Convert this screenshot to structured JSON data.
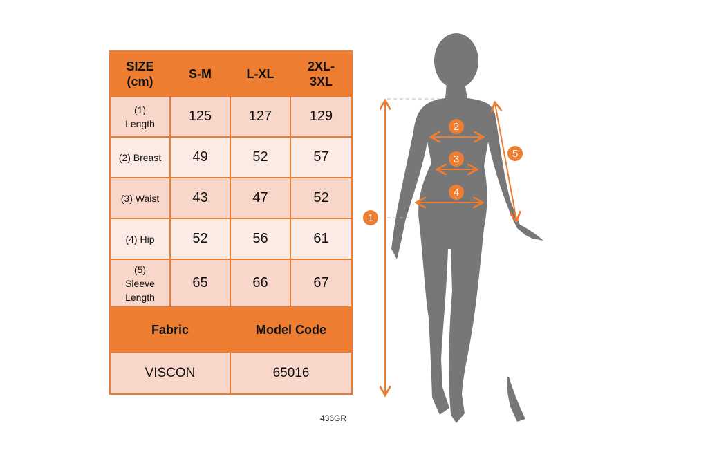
{
  "table": {
    "header": [
      "SIZE\n(cm)",
      "S-M",
      "L-XL",
      "2XL-\n3XL"
    ],
    "rows": [
      {
        "label": "(1)\nLength",
        "values": [
          "125",
          "127",
          "129"
        ]
      },
      {
        "label": "(2) Breast",
        "values": [
          "49",
          "52",
          "57"
        ]
      },
      {
        "label": "(3) Waist",
        "values": [
          "43",
          "47",
          "52"
        ]
      },
      {
        "label": "(4) Hip",
        "values": [
          "52",
          "56",
          "61"
        ]
      },
      {
        "label": "(5)\nSleeve\nLength",
        "values": [
          "65",
          "66",
          "67"
        ]
      }
    ],
    "fabric_label": "Fabric",
    "model_code_label": "Model Code",
    "fabric_value": "VISCON",
    "model_code_value": "65016"
  },
  "product_code": "436GR",
  "figure": {
    "markers": [
      "1",
      "2",
      "3",
      "4",
      "5"
    ],
    "accent_color": "#ed7d31",
    "silhouette_color": "#777777"
  }
}
